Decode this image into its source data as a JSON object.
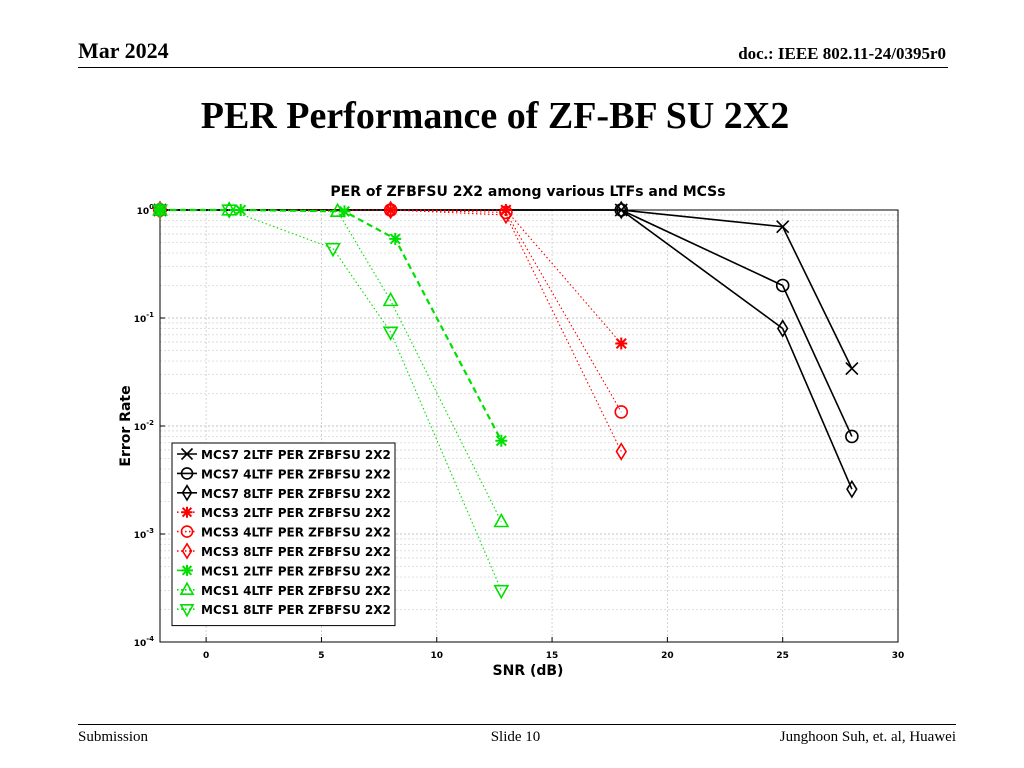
{
  "header": {
    "date": "Mar 2024",
    "doc": "doc.: IEEE 802.11-24/0395r0"
  },
  "slide": {
    "title": "PER Performance of ZF-BF SU 2X2"
  },
  "footer": {
    "left": "Submission",
    "center": "Slide 10",
    "right": "Junghoon Suh, et. al, Huawei"
  },
  "chart_data": {
    "type": "line",
    "title": "PER of ZFBFSU 2X2 among various LTFs and MCSs",
    "xlabel": "SNR (dB)",
    "ylabel": "Error Rate",
    "xlim": [
      -2,
      30
    ],
    "ylim": [
      0.0001,
      1
    ],
    "yscale": "log",
    "grid": true,
    "legend_position": "bottom-left",
    "x_ticks": [
      "0",
      "5",
      "10",
      "15",
      "20",
      "25",
      "30"
    ],
    "y_ticks": [
      "10^0",
      "10^-1",
      "10^-2",
      "10^-3",
      "10^-4"
    ],
    "colors": {
      "mcs7": "#000000",
      "mcs3": "#ff0000",
      "mcs1": "#00e000"
    },
    "series": [
      {
        "name": "MCS7 2LTF PER ZFBFSU 2X2",
        "group": "mcs7",
        "marker": "x",
        "line": "solid",
        "x": [
          -2,
          18,
          25,
          28
        ],
        "values": [
          1,
          1,
          0.7,
          0.034
        ]
      },
      {
        "name": "MCS7 4LTF PER ZFBFSU 2X2",
        "group": "mcs7",
        "marker": "circle",
        "line": "solid",
        "x": [
          -2,
          18,
          25,
          28
        ],
        "values": [
          1,
          1,
          0.2,
          0.008
        ]
      },
      {
        "name": "MCS7 8LTF PER ZFBFSU 2X2",
        "group": "mcs7",
        "marker": "diamond",
        "line": "solid",
        "x": [
          -2,
          18,
          25,
          28
        ],
        "values": [
          1,
          1,
          0.08,
          0.0026
        ]
      },
      {
        "name": "MCS3 2LTF PER ZFBFSU 2X2",
        "group": "mcs3",
        "marker": "asterisk",
        "line": "dotted",
        "x": [
          -2,
          8,
          13,
          18
        ],
        "values": [
          1,
          1,
          1,
          0.058
        ]
      },
      {
        "name": "MCS3 4LTF PER ZFBFSU 2X2",
        "group": "mcs3",
        "marker": "circle",
        "line": "dotted",
        "x": [
          -2,
          8,
          13,
          18
        ],
        "values": [
          1,
          1,
          0.95,
          0.0135
        ]
      },
      {
        "name": "MCS3 8LTF PER ZFBFSU 2X2",
        "group": "mcs3",
        "marker": "diamond",
        "line": "dotted",
        "x": [
          -2,
          8,
          13,
          18
        ],
        "values": [
          1,
          1,
          0.9,
          0.0058
        ]
      },
      {
        "name": "MCS1 2LTF PER ZFBFSU 2X2",
        "group": "mcs1",
        "marker": "asterisk",
        "line": "dashed",
        "x": [
          -2,
          1.5,
          6,
          8.2,
          12.8
        ],
        "values": [
          1,
          1,
          0.97,
          0.54,
          0.0073
        ]
      },
      {
        "name": "MCS1 4LTF PER ZFBFSU 2X2",
        "group": "mcs1",
        "marker": "triangle-up",
        "line": "dotted",
        "x": [
          -2,
          1,
          5.7,
          8,
          12.8
        ],
        "values": [
          1,
          1,
          0.97,
          0.145,
          0.0013
        ]
      },
      {
        "name": "MCS1 8LTF PER ZFBFSU 2X2",
        "group": "mcs1",
        "marker": "triangle-down",
        "line": "dotted",
        "x": [
          -2,
          1,
          5.5,
          8,
          12.8
        ],
        "values": [
          1,
          1,
          0.44,
          0.074,
          0.0003
        ]
      }
    ]
  }
}
